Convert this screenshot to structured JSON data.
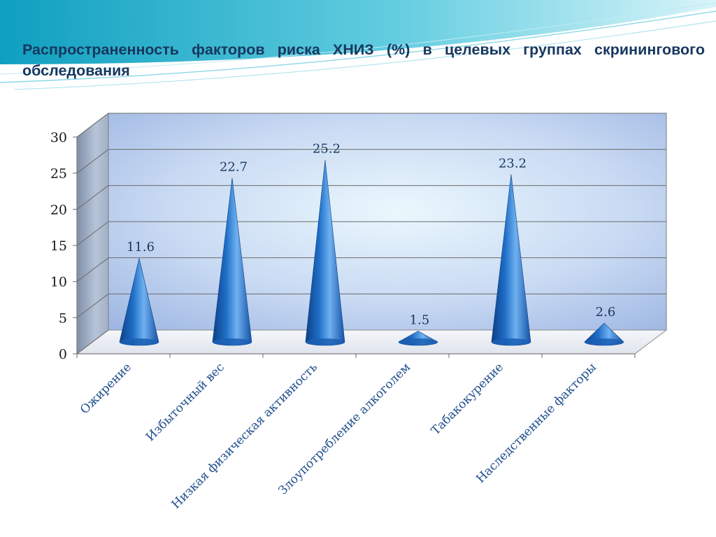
{
  "title": "Распространенность факторов риска ХНИЗ (%) в целевых группах скринингового обследования",
  "chart_data": {
    "type": "bar",
    "shape": "cone",
    "title": "Распространенность факторов риска ХНИЗ (%) в целевых группах скринингового обследования",
    "xlabel": "",
    "ylabel": "",
    "categories": [
      "Ожирение",
      "Избыточный вес",
      "Низкая физическая активность",
      "Злоупотребление алкоголем",
      "Табакокурение",
      "Наследственные факторы"
    ],
    "values": [
      11.6,
      22.7,
      25.2,
      1.5,
      23.2,
      2.6
    ],
    "data_labels": [
      "11.6",
      "22.7",
      "25.2",
      "1.5",
      "23.2",
      "2.6"
    ],
    "y_ticks": [
      "0",
      "5",
      "10",
      "15",
      "20",
      "25",
      "30"
    ],
    "ylim": [
      0,
      30
    ],
    "grid": true,
    "legend": "none",
    "colors": {
      "cone": "#1f6fc8",
      "cone_dark": "#0d3f85",
      "cone_light": "#6fb1f0",
      "title": "#17375e",
      "grid": "#6b6b6b",
      "wall": "#c8d8f2"
    }
  }
}
